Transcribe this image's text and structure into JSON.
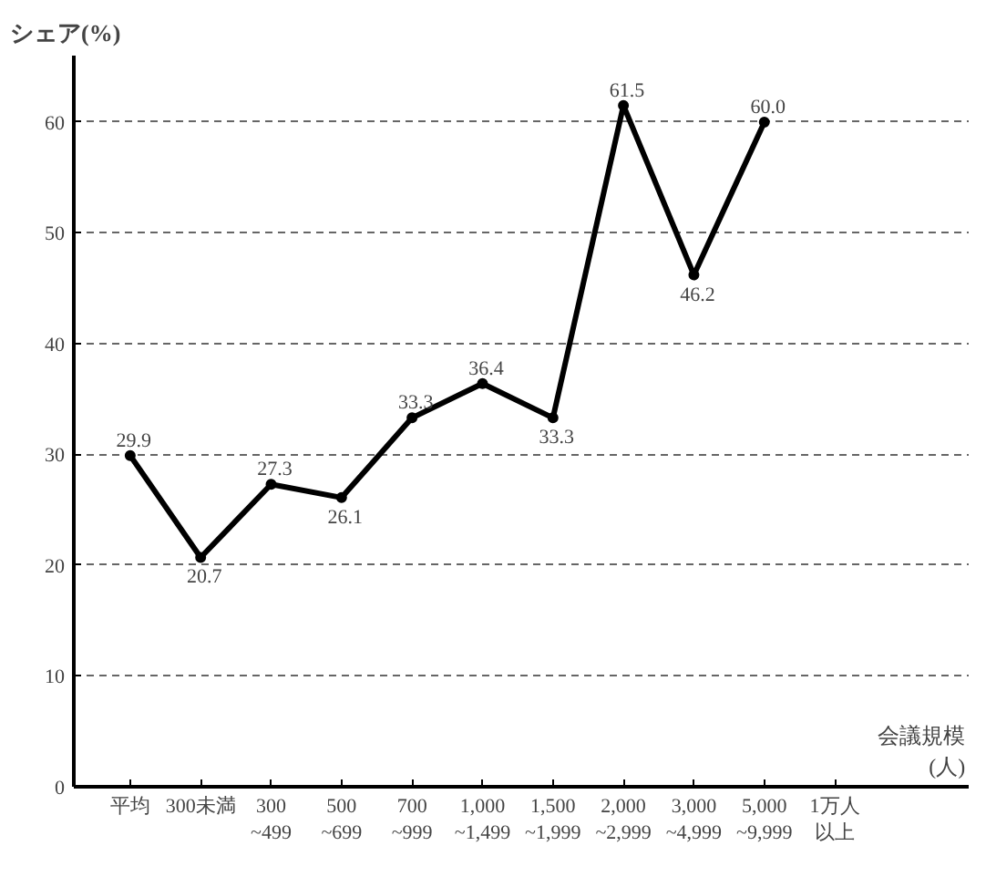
{
  "chart_data": {
    "type": "line",
    "ylabel": "シェア(%)",
    "xlabel": "会議規模\n(人)",
    "categories": [
      "平均",
      "300未満",
      "300\n~499",
      "500\n~699",
      "700\n~999",
      "1,000\n~1,499",
      "1,500\n~1,999",
      "2,000\n~2,999",
      "3,000\n~4,999",
      "5,000\n~9,999",
      "1万人以上"
    ],
    "series": [
      {
        "color": "#000000",
        "values": [
          29.9,
          20.7,
          27.3,
          26.1,
          33.3,
          36.4,
          33.3,
          61.5,
          46.2,
          60.0,
          null
        ],
        "value_labels": [
          "29.9",
          "20.7",
          "27.3",
          "26.1",
          "33.3",
          "36.4",
          "33.3",
          "61.5",
          "46.2",
          "60.0",
          null
        ]
      }
    ],
    "ylim": [
      0,
      66
    ],
    "yticks": [
      0,
      10,
      20,
      30,
      40,
      50,
      60
    ],
    "grid": "y",
    "marker": "circle",
    "line_style": "solid"
  }
}
